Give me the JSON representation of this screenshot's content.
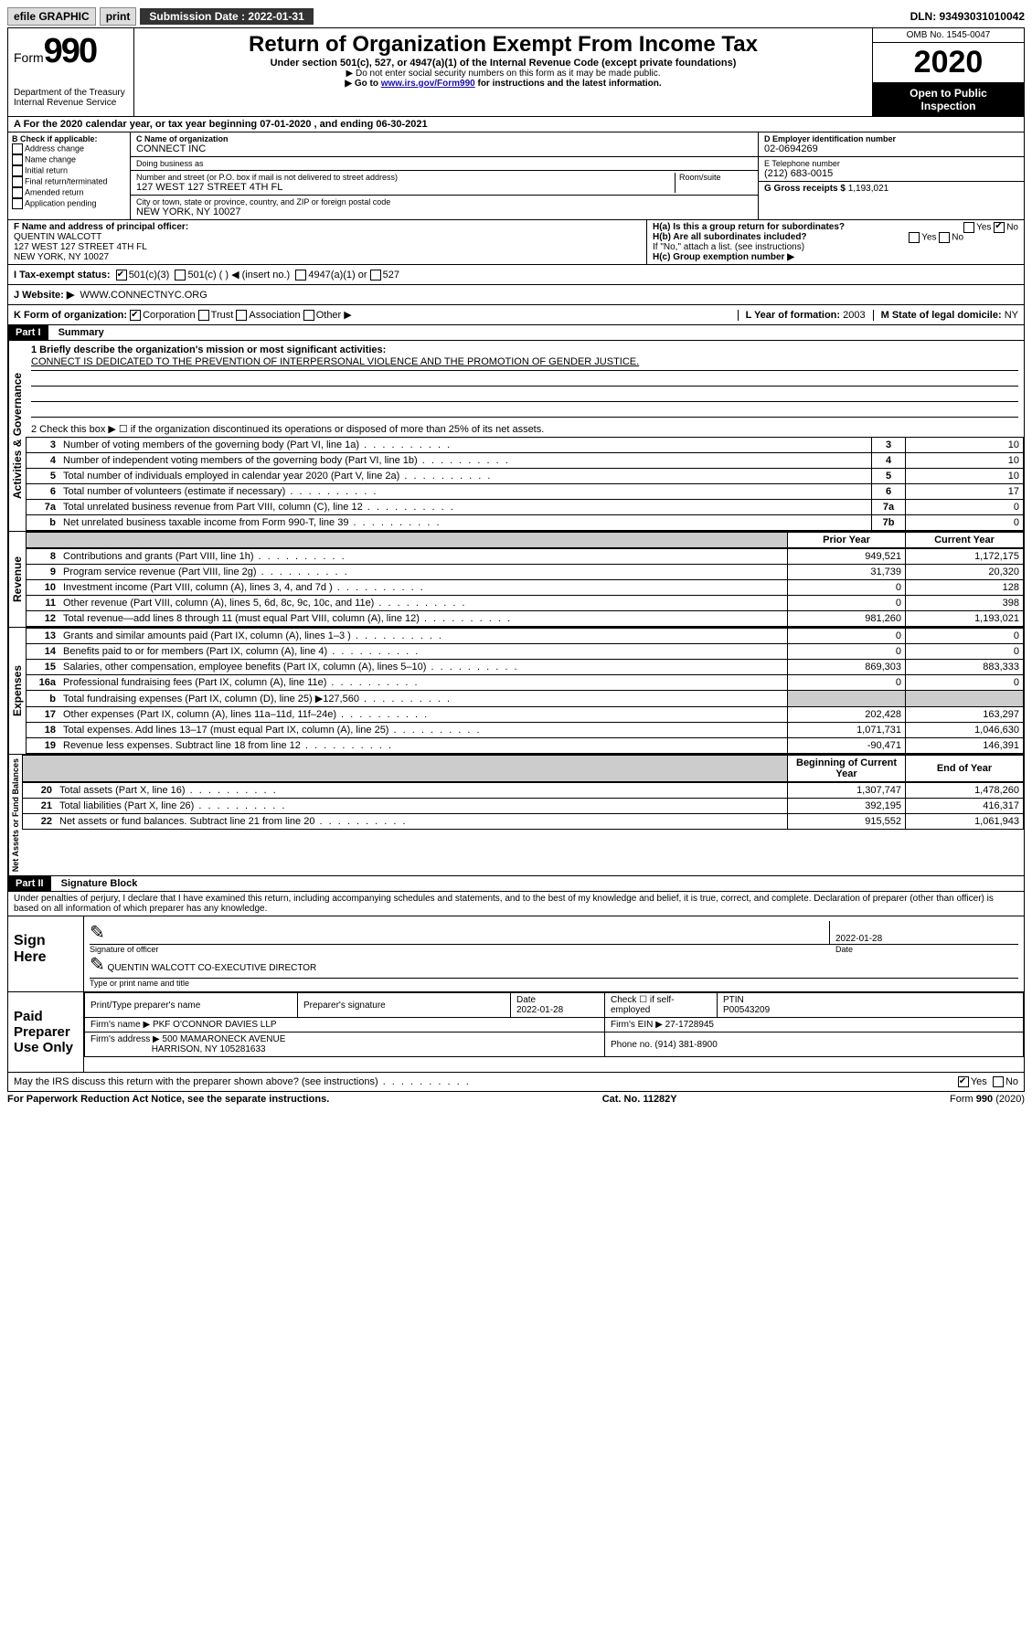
{
  "topbar": {
    "efile": "efile GRAPHIC",
    "print": "print",
    "subdate_label": "Submission Date :",
    "subdate": "2022-01-31",
    "dln": "DLN: 93493031010042"
  },
  "header": {
    "form_word": "Form",
    "form_num": "990",
    "dept": "Department of the Treasury\nInternal Revenue Service",
    "title": "Return of Organization Exempt From Income Tax",
    "sub1": "Under section 501(c), 527, or 4947(a)(1) of the Internal Revenue Code (except private foundations)",
    "sub2": "▶ Do not enter social security numbers on this form as it may be made public.",
    "sub3_pre": "▶ Go to ",
    "sub3_link": "www.irs.gov/Form990",
    "sub3_post": " for instructions and the latest information.",
    "omb": "OMB No. 1545-0047",
    "year": "2020",
    "inspect1": "Open to Public",
    "inspect2": "Inspection"
  },
  "lineA": "A For the 2020 calendar year, or tax year beginning 07-01-2020   , and ending 06-30-2021",
  "boxB": {
    "label": "B Check if applicable:",
    "opts": [
      "Address change",
      "Name change",
      "Initial return",
      "Final return/terminated",
      "Amended return",
      "Application pending"
    ]
  },
  "boxC": {
    "name_lbl": "C Name of organization",
    "name": "CONNECT INC",
    "dba_lbl": "Doing business as",
    "dba": "",
    "addr_lbl": "Number and street (or P.O. box if mail is not delivered to street address)",
    "room_lbl": "Room/suite",
    "addr": "127 WEST 127 STREET 4TH FL",
    "city_lbl": "City or town, state or province, country, and ZIP or foreign postal code",
    "city": "NEW YORK, NY  10027"
  },
  "boxD": {
    "lbl": "D Employer identification number",
    "val": "02-0694269"
  },
  "boxE": {
    "lbl": "E Telephone number",
    "val": "(212) 683-0015"
  },
  "boxG": {
    "lbl": "G Gross receipts $",
    "val": "1,193,021"
  },
  "boxF": {
    "lbl": "F Name and address of principal officer:",
    "name": "QUENTIN WALCOTT",
    "addr1": "127 WEST 127 STREET 4TH FL",
    "addr2": "NEW YORK, NY  10027"
  },
  "boxH": {
    "a": "H(a)  Is this a group return for subordinates?",
    "b": "H(b)  Are all subordinates included?",
    "b_note": "If \"No,\" attach a list. (see instructions)",
    "c": "H(c)  Group exemption number ▶",
    "yes": "Yes",
    "no": "No"
  },
  "boxI": {
    "lbl": "I  Tax-exempt status:",
    "o1": "501(c)(3)",
    "o2": "501(c) (   ) ◀ (insert no.)",
    "o3": "4947(a)(1) or",
    "o4": "527"
  },
  "boxJ": {
    "lbl": "J  Website: ▶",
    "val": "WWW.CONNECTNYC.ORG"
  },
  "boxK": {
    "lbl": "K Form of organization:",
    "o1": "Corporation",
    "o2": "Trust",
    "o3": "Association",
    "o4": "Other ▶"
  },
  "boxL": {
    "lbl": "L Year of formation:",
    "val": "2003"
  },
  "boxM": {
    "lbl": "M State of legal domicile:",
    "val": "NY"
  },
  "part1": {
    "hdr": "Part I",
    "title": "Summary",
    "l1": "1  Briefly describe the organization's mission or most significant activities:",
    "mission": "CONNECT IS DEDICATED TO THE PREVENTION OF INTERPERSONAL VIOLENCE AND THE PROMOTION OF GENDER JUSTICE.",
    "l2": "2   Check this box ▶ ☐  if the organization discontinued its operations or disposed of more than 25% of its net assets.",
    "rows_gov": [
      {
        "n": "3",
        "t": "Number of voting members of the governing body (Part VI, line 1a)",
        "box": "3",
        "v": "10"
      },
      {
        "n": "4",
        "t": "Number of independent voting members of the governing body (Part VI, line 1b)",
        "box": "4",
        "v": "10"
      },
      {
        "n": "5",
        "t": "Total number of individuals employed in calendar year 2020 (Part V, line 2a)",
        "box": "5",
        "v": "10"
      },
      {
        "n": "6",
        "t": "Total number of volunteers (estimate if necessary)",
        "box": "6",
        "v": "17"
      },
      {
        "n": "7a",
        "t": "Total unrelated business revenue from Part VIII, column (C), line 12",
        "box": "7a",
        "v": "0"
      },
      {
        "n": "b",
        "t": "Net unrelated business taxable income from Form 990-T, line 39",
        "box": "7b",
        "v": "0"
      }
    ],
    "col_py": "Prior Year",
    "col_cy": "Current Year",
    "rows_rev": [
      {
        "n": "8",
        "t": "Contributions and grants (Part VIII, line 1h)",
        "py": "949,521",
        "cy": "1,172,175"
      },
      {
        "n": "9",
        "t": "Program service revenue (Part VIII, line 2g)",
        "py": "31,739",
        "cy": "20,320"
      },
      {
        "n": "10",
        "t": "Investment income (Part VIII, column (A), lines 3, 4, and 7d )",
        "py": "0",
        "cy": "128"
      },
      {
        "n": "11",
        "t": "Other revenue (Part VIII, column (A), lines 5, 6d, 8c, 9c, 10c, and 11e)",
        "py": "0",
        "cy": "398"
      },
      {
        "n": "12",
        "t": "Total revenue—add lines 8 through 11 (must equal Part VIII, column (A), line 12)",
        "py": "981,260",
        "cy": "1,193,021"
      }
    ],
    "rows_exp": [
      {
        "n": "13",
        "t": "Grants and similar amounts paid (Part IX, column (A), lines 1–3 )",
        "py": "0",
        "cy": "0"
      },
      {
        "n": "14",
        "t": "Benefits paid to or for members (Part IX, column (A), line 4)",
        "py": "0",
        "cy": "0"
      },
      {
        "n": "15",
        "t": "Salaries, other compensation, employee benefits (Part IX, column (A), lines 5–10)",
        "py": "869,303",
        "cy": "883,333"
      },
      {
        "n": "16a",
        "t": "Professional fundraising fees (Part IX, column (A), line 11e)",
        "py": "0",
        "cy": "0"
      },
      {
        "n": "b",
        "t": "Total fundraising expenses (Part IX, column (D), line 25) ▶127,560",
        "py": "",
        "cy": "",
        "shaded": true
      },
      {
        "n": "17",
        "t": "Other expenses (Part IX, column (A), lines 11a–11d, 11f–24e)",
        "py": "202,428",
        "cy": "163,297"
      },
      {
        "n": "18",
        "t": "Total expenses. Add lines 13–17 (must equal Part IX, column (A), line 25)",
        "py": "1,071,731",
        "cy": "1,046,630"
      },
      {
        "n": "19",
        "t": "Revenue less expenses. Subtract line 18 from line 12",
        "py": "-90,471",
        "cy": "146,391"
      }
    ],
    "col_boy": "Beginning of Current Year",
    "col_eoy": "End of Year",
    "rows_net": [
      {
        "n": "20",
        "t": "Total assets (Part X, line 16)",
        "py": "1,307,747",
        "cy": "1,478,260"
      },
      {
        "n": "21",
        "t": "Total liabilities (Part X, line 26)",
        "py": "392,195",
        "cy": "416,317"
      },
      {
        "n": "22",
        "t": "Net assets or fund balances. Subtract line 21 from line 20",
        "py": "915,552",
        "cy": "1,061,943"
      }
    ],
    "vlabels": {
      "gov": "Activities & Governance",
      "rev": "Revenue",
      "exp": "Expenses",
      "net": "Net Assets or Fund Balances"
    }
  },
  "part2": {
    "hdr": "Part II",
    "title": "Signature Block",
    "decl": "Under penalties of perjury, I declare that I have examined this return, including accompanying schedules and statements, and to the best of my knowledge and belief, it is true, correct, and complete. Declaration of preparer (other than officer) is based on all information of which preparer has any knowledge.",
    "sign_here": "Sign Here",
    "sig_officer": "Signature of officer",
    "date_lbl": "Date",
    "date": "2022-01-28",
    "officer_name": "QUENTIN WALCOTT  CO-EXECUTIVE DIRECTOR",
    "type_name": "Type or print name and title",
    "paid": "Paid Preparer Use Only",
    "prep_name_lbl": "Print/Type preparer's name",
    "prep_sig_lbl": "Preparer's signature",
    "prep_date_lbl": "Date",
    "prep_date": "2022-01-28",
    "chk_lbl": "Check ☐ if self-employed",
    "ptin_lbl": "PTIN",
    "ptin": "P00543209",
    "firm_name_lbl": "Firm's name    ▶",
    "firm_name": "PKF O'CONNOR DAVIES LLP",
    "firm_ein_lbl": "Firm's EIN ▶",
    "firm_ein": "27-1728945",
    "firm_addr_lbl": "Firm's address ▶",
    "firm_addr1": "500 MAMARONECK AVENUE",
    "firm_addr2": "HARRISON, NY  105281633",
    "phone_lbl": "Phone no.",
    "phone": "(914) 381-8900",
    "discuss": "May the IRS discuss this return with the preparer shown above? (see instructions)",
    "yes": "Yes",
    "no": "No"
  },
  "footer": {
    "left": "For Paperwork Reduction Act Notice, see the separate instructions.",
    "mid": "Cat. No. 11282Y",
    "right": "Form 990 (2020)"
  }
}
